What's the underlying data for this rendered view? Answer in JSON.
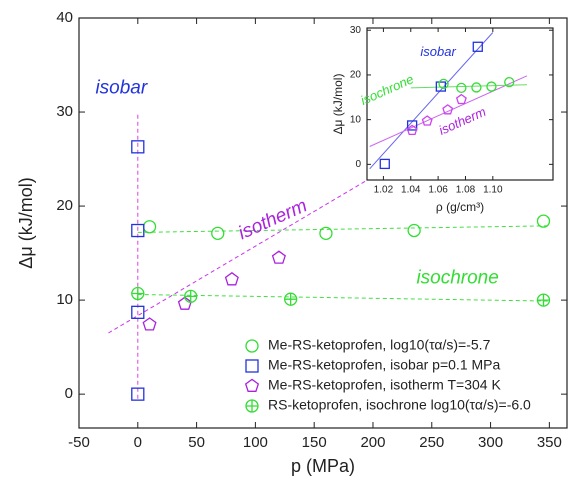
{
  "chart_data": [
    {
      "type": "scatter",
      "x_label": "p (MPa)",
      "y_label": "Δμ (kJ/mol)",
      "xlim": [
        -50,
        365
      ],
      "ylim": [
        -3.6,
        40
      ],
      "xticks": [
        -50,
        0,
        50,
        100,
        150,
        200,
        250,
        300,
        350
      ],
      "yticks": [
        0,
        10,
        20,
        30,
        40
      ],
      "legend": "lower right",
      "series": [
        {
          "name": "Me-RS-ketoprofen, log10(τα/s)=-5.7",
          "color": "#33dd33",
          "marker": "circle",
          "x": [
            10,
            68,
            160,
            235,
            345
          ],
          "values": [
            17.8,
            17.1,
            17.1,
            17.4,
            18.4
          ]
        },
        {
          "name": "Me-RS-ketoprofen, isobar p=0.1 MPa",
          "color": "#2233dd",
          "marker": "square",
          "x": [
            0,
            0,
            0,
            0
          ],
          "values": [
            26.3,
            17.4,
            8.7,
            0
          ]
        },
        {
          "name": "Me-RS-ketoprofen, isotherm T=304 K",
          "color": "#aa22dd",
          "marker": "pentagon",
          "x": [
            10,
            40,
            80,
            120
          ],
          "values": [
            7.4,
            9.6,
            12.2,
            14.5
          ]
        },
        {
          "name": "RS-ketoprofen, isochrone log10(τα/s)=-6.0",
          "color": "#33dd33",
          "marker": "crossed-circle",
          "x": [
            0,
            45,
            130,
            345
          ],
          "values": [
            10.7,
            10.4,
            10.1,
            10.0
          ]
        }
      ],
      "fit_lines": [
        {
          "color": "#44dd44",
          "dashed": true,
          "x": [
            0,
            350
          ],
          "values": [
            17.2,
            17.9
          ]
        },
        {
          "color": "#44dd44",
          "dashed": true,
          "x": [
            0,
            350
          ],
          "values": [
            10.6,
            9.9
          ]
        },
        {
          "color": "#cc33ee",
          "dashed": true,
          "x": [
            -25,
            205
          ],
          "values": [
            6.5,
            23.5
          ]
        },
        {
          "color": "#dd44dd",
          "dashed": true,
          "x": [
            0,
            0
          ],
          "values": [
            -0.5,
            29.8
          ]
        }
      ],
      "annotations": [
        {
          "text": "isobar",
          "color": "#2233dd",
          "x": -14,
          "y": 32.5
        },
        {
          "text": "isotherm",
          "color": "#aa22dd",
          "x": 115,
          "y": 18.5
        },
        {
          "text": "isochrone",
          "color": "#33dd33",
          "x": 272,
          "y": 12.3
        }
      ]
    },
    {
      "type": "scatter",
      "x_label": "ρ (g/cm³)",
      "y_label": "Δμ (kJ/mol)",
      "xlim": [
        1.008,
        1.144
      ],
      "ylim": [
        -3.5,
        30.5
      ],
      "xticks": [
        1.02,
        1.04,
        1.06,
        1.08,
        {
          "value": 1.1,
          "label": "1.10"
        }
      ],
      "yticks": [
        0,
        10,
        20,
        30
      ],
      "series": [
        {
          "color": "#2233dd",
          "marker": "square",
          "x": [
            1.021,
            1.041,
            1.062,
            1.089
          ],
          "values": [
            0.1,
            8.7,
            17.4,
            26.3
          ]
        },
        {
          "color": "#cc44ee",
          "marker": "pentagon",
          "x": [
            1.041,
            1.052,
            1.067,
            1.077
          ],
          "values": [
            7.6,
            9.7,
            12.2,
            14.5
          ]
        },
        {
          "color": "#33dd33",
          "marker": "circle",
          "x": [
            1.064,
            1.077,
            1.088,
            1.099,
            1.112
          ],
          "values": [
            18.0,
            17.1,
            17.2,
            17.4,
            18.4
          ]
        }
      ],
      "fit_lines": [
        {
          "color": "#6666ee",
          "dashed": false,
          "x": [
            1.01,
            1.1
          ],
          "values": [
            -1,
            29.5
          ]
        },
        {
          "color": "#cc66ee",
          "dashed": false,
          "x": [
            1.01,
            1.125
          ],
          "values": [
            4,
            19.8
          ]
        },
        {
          "color": "#66dd66",
          "dashed": false,
          "x": [
            1.04,
            1.125
          ],
          "values": [
            17.1,
            17.8
          ]
        }
      ],
      "annotations": [
        {
          "text": "isobar",
          "color": "#2233dd",
          "x": 1.06,
          "y": 25
        },
        {
          "text": "isochrone",
          "color": "#33dd33",
          "x": 1.023,
          "y": 16.5
        },
        {
          "text": "isotherm",
          "color": "#aa22dd",
          "x": 1.078,
          "y": 9.5
        }
      ]
    }
  ]
}
